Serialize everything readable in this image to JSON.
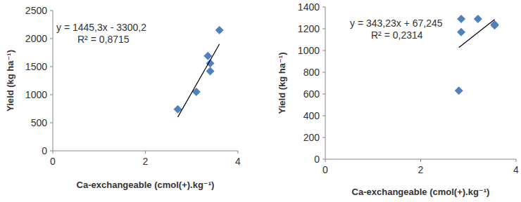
{
  "chart_data": [
    {
      "type": "scatter",
      "x_label": "Ca-exchangeable (cmol(+).kg⁻¹)",
      "y_label": "Yield (kg ha⁻¹)",
      "annotations": [
        "y = 1445,3x - 3300,2",
        "R² = 0,8715"
      ],
      "series": [
        {
          "type": "scatter",
          "color": "#4f81bd",
          "marker": "diamond",
          "x": [
            2.7,
            3.1,
            3.35,
            3.4,
            3.4,
            3.6
          ],
          "values": [
            740,
            1050,
            1690,
            1560,
            1420,
            2150
          ]
        },
        {
          "type": "line",
          "color": "#000000",
          "line_style": "solid",
          "x": [
            2.7,
            3.6
          ],
          "values": [
            602,
            1903
          ]
        }
      ],
      "xlim": [
        0,
        4
      ],
      "xticks": [
        0,
        2,
        4
      ],
      "ylim": [
        0,
        2500
      ],
      "yticks": [
        0,
        500,
        1000,
        1500,
        2000,
        2500
      ],
      "grid": false
    },
    {
      "type": "scatter",
      "x_label": "Ca-exchangeable (cmol(+).kg⁻¹)",
      "y_label": "Yield (kg ha⁻¹)",
      "annotations": [
        "y = 343,23x + 67,245",
        "R² = 0,2314"
      ],
      "series": [
        {
          "type": "scatter",
          "color": "#4f81bd",
          "marker": "diamond",
          "x": [
            2.8,
            2.85,
            2.85,
            3.2,
            3.55,
            3.55
          ],
          "values": [
            630,
            1170,
            1290,
            1290,
            1230,
            1240
          ]
        },
        {
          "type": "line",
          "color": "#000000",
          "line_style": "solid",
          "x": [
            2.8,
            3.55
          ],
          "values": [
            1028,
            1286
          ]
        }
      ],
      "xlim": [
        0,
        4
      ],
      "xticks": [
        0,
        2,
        4
      ],
      "ylim": [
        0,
        1400
      ],
      "yticks": [
        0,
        200,
        400,
        600,
        800,
        1000,
        1200,
        1400
      ],
      "grid": false
    }
  ]
}
